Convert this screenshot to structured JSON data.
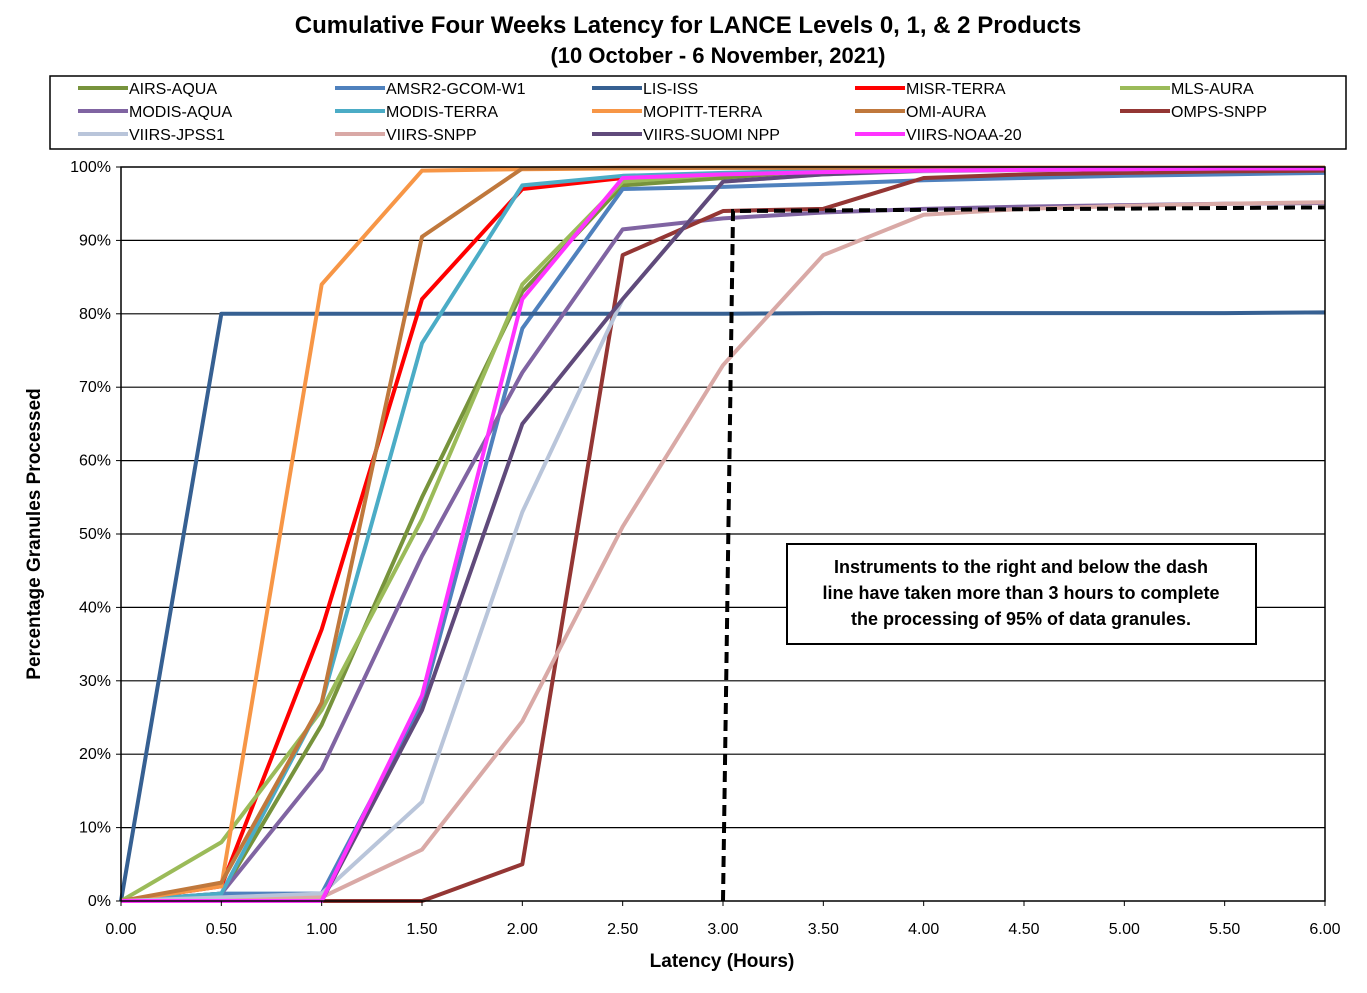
{
  "chart_data": {
    "type": "line",
    "title": "Cumulative Four Weeks Latency  for LANCE Levels 0, 1, & 2 Products",
    "subtitle": "(10  October   -  6  November,  2021)",
    "xlabel": "Latency (Hours)",
    "ylabel": "Percentage Granules Processed",
    "xlim": [
      0,
      6
    ],
    "ylim": [
      0,
      100
    ],
    "x_ticks": [
      "0.00",
      "0.50",
      "1.00",
      "1.50",
      "2.00",
      "2.50",
      "3.00",
      "3.50",
      "4.00",
      "4.50",
      "5.00",
      "5.50",
      "6.00"
    ],
    "y_ticks": [
      "0%",
      "10%",
      "20%",
      "30%",
      "40%",
      "50%",
      "60%",
      "70%",
      "80%",
      "90%",
      "100%"
    ],
    "x": [
      0,
      0.5,
      1.0,
      1.5,
      2.0,
      2.5,
      3.0,
      3.5,
      4.0,
      4.5,
      5.0,
      5.5,
      6.0
    ],
    "series": [
      {
        "name": "AIRS-AQUA",
        "color": "#77933c",
        "values": [
          0,
          1,
          24,
          55,
          83,
          97.5,
          98.5,
          99,
          99.5,
          99.6,
          99.7,
          99.8,
          99.8
        ]
      },
      {
        "name": "AMSR2-GCOM-W1",
        "color": "#4f81bd",
        "values": [
          0,
          1,
          1,
          27,
          78,
          97,
          97.3,
          97.7,
          98.2,
          98.5,
          98.8,
          99,
          99.2
        ]
      },
      {
        "name": "LIS-ISS",
        "color": "#366092",
        "values": [
          0,
          80,
          80,
          80,
          80,
          80,
          80,
          80.1,
          80.1,
          80.1,
          80.1,
          80.1,
          80.2
        ]
      },
      {
        "name": "MISR-TERRA",
        "color": "#ff0000",
        "values": [
          0,
          2,
          37,
          82,
          97,
          98.5,
          99,
          99.5,
          99.7,
          99.8,
          99.8,
          99.9,
          99.9
        ]
      },
      {
        "name": "MLS-AURA",
        "color": "#9bbb59",
        "values": [
          0,
          8,
          26,
          52,
          84,
          98,
          99,
          99.5,
          99.7,
          99.8,
          99.8,
          99.9,
          99.9
        ]
      },
      {
        "name": "MODIS-AQUA",
        "color": "#8064a2",
        "values": [
          0,
          1,
          18,
          47,
          72,
          91.5,
          93,
          93.8,
          94.3,
          94.6,
          94.8,
          95,
          95.1
        ]
      },
      {
        "name": "MODIS-TERRA",
        "color": "#4bacc6",
        "values": [
          0,
          1,
          27,
          76,
          97.5,
          98.8,
          99.2,
          99.5,
          99.7,
          99.8,
          99.8,
          99.9,
          99.9
        ]
      },
      {
        "name": "MOPITT-TERRA",
        "color": "#f79646",
        "values": [
          0,
          2,
          84,
          99.5,
          99.7,
          99.8,
          99.9,
          99.9,
          99.9,
          99.9,
          99.9,
          99.9,
          99.9
        ]
      },
      {
        "name": "OMI-AURA",
        "color": "#c0783c",
        "values": [
          0,
          2.5,
          27,
          90.5,
          99.8,
          99.9,
          99.9,
          99.9,
          99.9,
          99.9,
          99.9,
          99.9,
          99.9
        ]
      },
      {
        "name": "OMPS-SNPP",
        "color": "#943634",
        "values": [
          0,
          0,
          0,
          0,
          5,
          88,
          94,
          94.3,
          98.5,
          99,
          99.2,
          99.4,
          99.5
        ]
      },
      {
        "name": "VIIRS-JPSS1",
        "color": "#b9c5da",
        "values": [
          0,
          0.5,
          1,
          13.5,
          53,
          82,
          98,
          99,
          99.4,
          99.6,
          99.7,
          99.8,
          99.8
        ]
      },
      {
        "name": "VIIRS-SNPP",
        "color": "#d9a9a6",
        "values": [
          0,
          0,
          0.5,
          7,
          24.5,
          51,
          73,
          88,
          93.5,
          94.3,
          94.7,
          95,
          95.2
        ]
      },
      {
        "name": "VIIRS-SUOMI NPP",
        "color": "#604a7b",
        "values": [
          0,
          0,
          0,
          26,
          65,
          82,
          98,
          99,
          99.5,
          99.6,
          99.7,
          99.8,
          99.8
        ]
      },
      {
        "name": "VIIRS-NOAA-20",
        "color": "#ff33ff",
        "values": [
          0,
          0,
          0,
          28,
          82,
          98.5,
          99,
          99.3,
          99.5,
          99.6,
          99.7,
          99.8,
          99.8
        ]
      }
    ],
    "threshold_line": {
      "x": [
        3.0,
        3.05,
        6.0
      ],
      "y": [
        0,
        94,
        94.5
      ],
      "style": "dashed",
      "color": "#000000"
    },
    "annotation": [
      "Instruments to the right and below the dash",
      "line have taken more than 3 hours to complete",
      "the processing of 95% of data granules."
    ],
    "grid": true,
    "legend_position": "top"
  }
}
